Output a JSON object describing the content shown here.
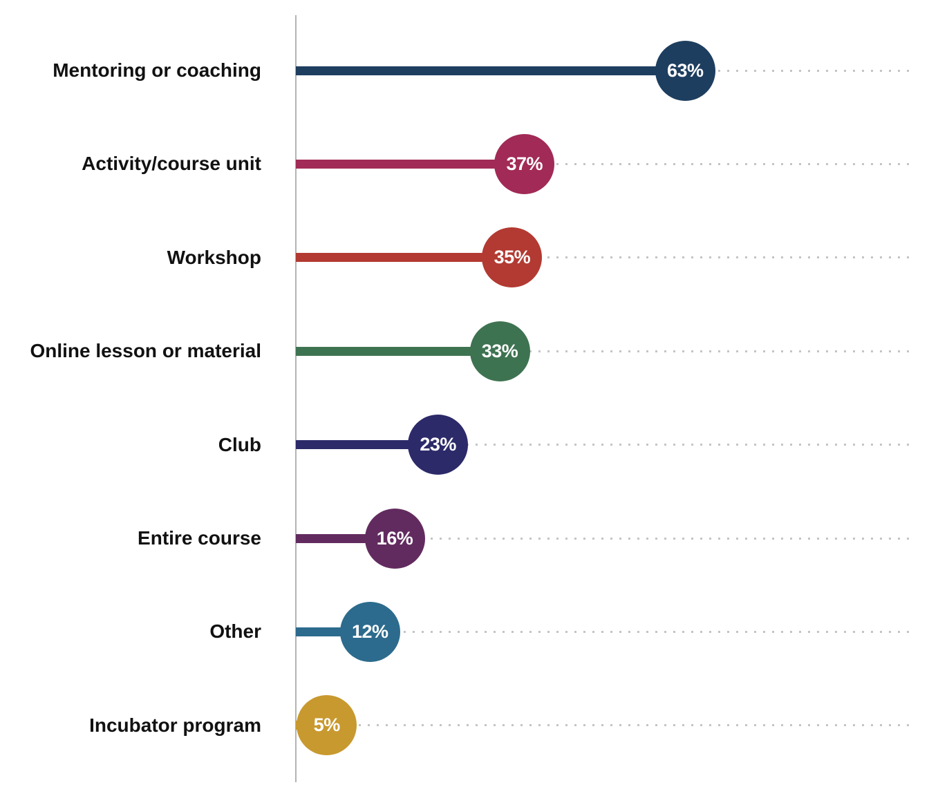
{
  "chart_data": {
    "type": "bar",
    "subtype": "lollipop",
    "orientation": "horizontal",
    "title": "",
    "xlabel": "",
    "ylabel": "",
    "xlim": [
      0,
      100
    ],
    "grid": "dotted-horizontal-leaders",
    "legend": "none",
    "categories": [
      "Mentoring or coaching",
      "Activity/course unit",
      "Workshop",
      "Online lesson or material",
      "Club",
      "Entire course",
      "Other",
      "Incubator program"
    ],
    "values": [
      63,
      37,
      35,
      33,
      23,
      16,
      12,
      5
    ],
    "value_labels": [
      "63%",
      "37%",
      "35%",
      "33%",
      "23%",
      "16%",
      "12%",
      "5%"
    ],
    "colors": [
      "#1e3e5f",
      "#a12a56",
      "#b23a32",
      "#3e7351",
      "#2d2a6a",
      "#622b5f",
      "#2c6b8d",
      "#c8992f"
    ],
    "axis_color": "#b3b3b3",
    "gridline_color": "#c4c4c4",
    "label_color": "#111111",
    "value_text_color": "#ffffff"
  }
}
